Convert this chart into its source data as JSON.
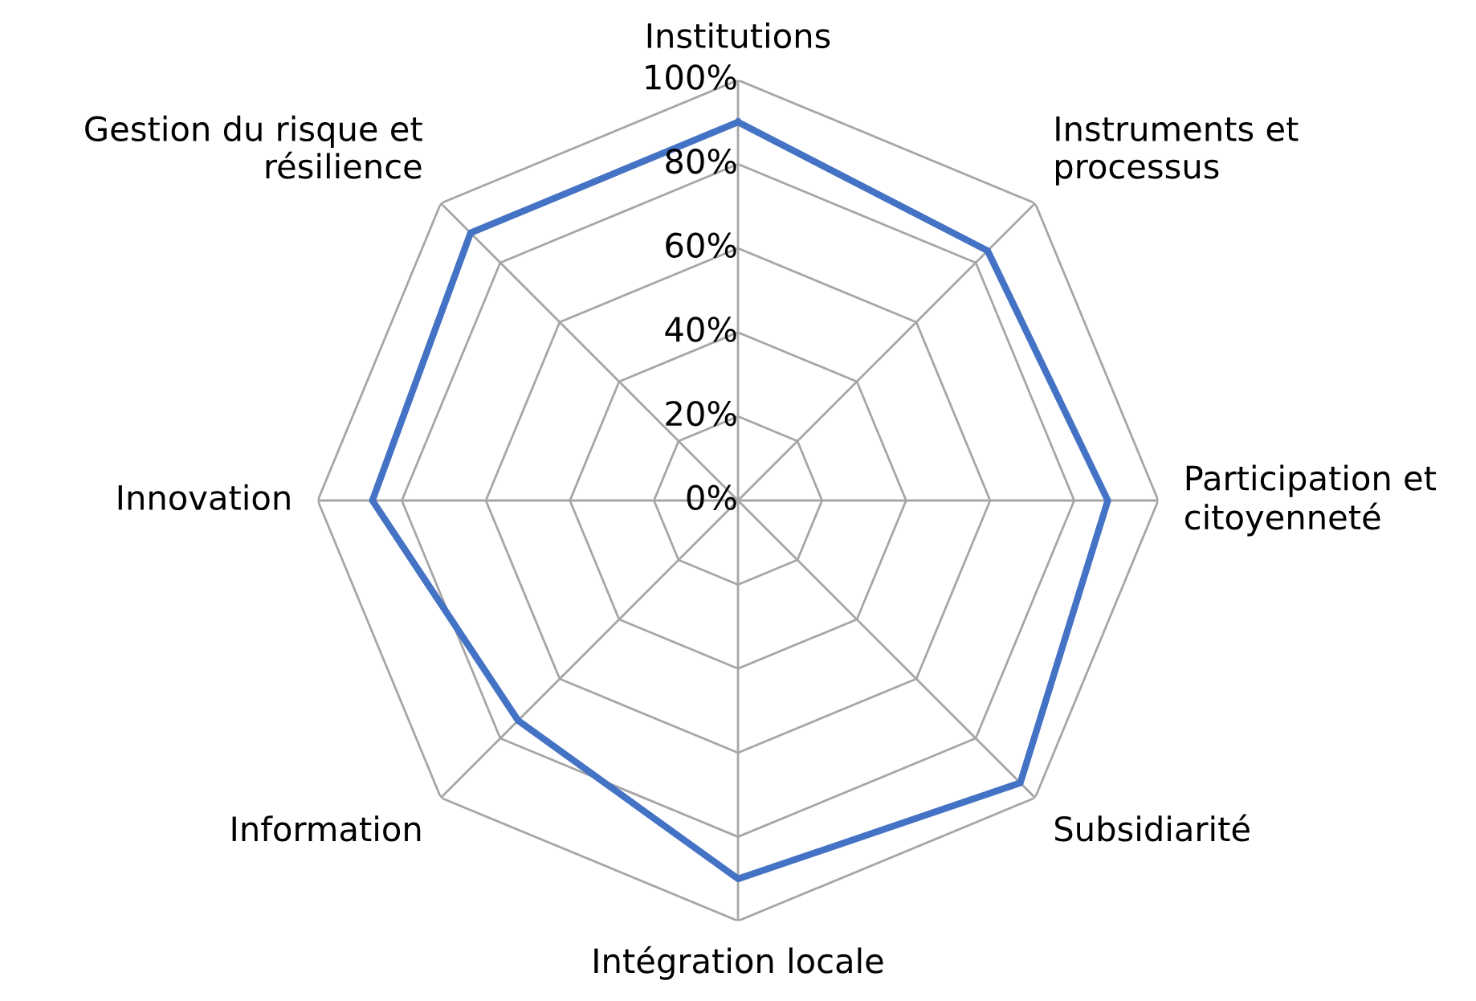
{
  "chart_data": {
    "type": "radar",
    "categories": [
      "Institutions",
      "Instruments et processus",
      "Participation et citoyenneté",
      "Subsidiarité",
      "Intégration locale",
      "Information",
      "Innovation",
      "Gestion du risque et résilience"
    ],
    "series": [
      {
        "color": "#4472c4",
        "values": [
          90,
          84,
          88,
          95,
          90,
          74,
          87,
          90
        ]
      }
    ],
    "ylim": [
      0,
      100
    ],
    "yticks": [
      {
        "value": 0,
        "label": "0%"
      },
      {
        "value": 20,
        "label": "20%"
      },
      {
        "value": 40,
        "label": "40%"
      },
      {
        "value": 60,
        "label": "60%"
      },
      {
        "value": 80,
        "label": "80%"
      },
      {
        "value": 100,
        "label": "100%"
      }
    ],
    "grid": true,
    "marker": "none",
    "line_style": "solid"
  }
}
